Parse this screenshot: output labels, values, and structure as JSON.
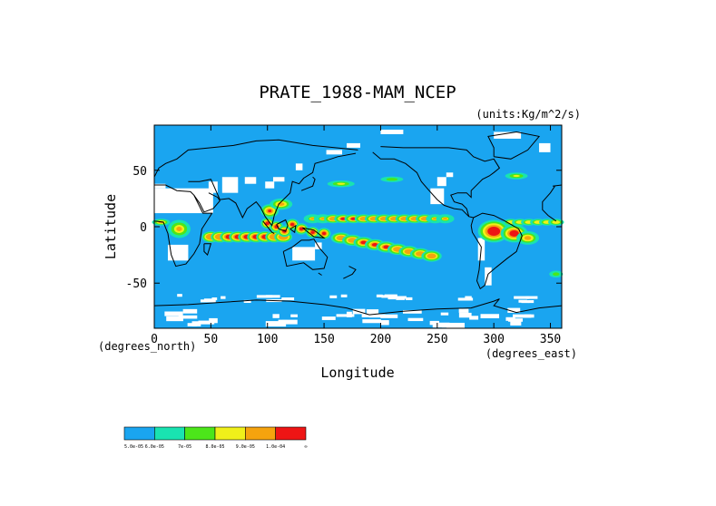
{
  "chart_data": {
    "type": "heatmap",
    "title": "PRATE_1988-MAM_NCEP",
    "units": "(units:Kg/m^2/s)",
    "xlabel": "Longitude",
    "ylabel": "Latitude",
    "xunits": "(degrees_east)",
    "yunits": "(degrees_north)",
    "xlim": [
      0,
      360
    ],
    "ylim": [
      -90,
      90
    ],
    "xticks": [
      0,
      50,
      100,
      150,
      200,
      250,
      300,
      350
    ],
    "yticks": [
      50,
      0,
      -50
    ],
    "grid": false,
    "legend": {
      "placement": "bottom-left",
      "colors": [
        "#1aa5f0",
        "#19e3b1",
        "#4ce61a",
        "#f0f01a",
        "#f5a30e",
        "#ee1515"
      ],
      "labels": [
        "5.0e-05",
        "6.0e-05",
        "7e-05",
        "8.0e-05",
        "9.0e-05",
        "1.0e-04",
        "∞"
      ]
    }
  },
  "colors": {
    "background": "#ffffff",
    "ocean_base": "#1aa5f0",
    "missing": "#ffffff",
    "coast": "#000000"
  }
}
